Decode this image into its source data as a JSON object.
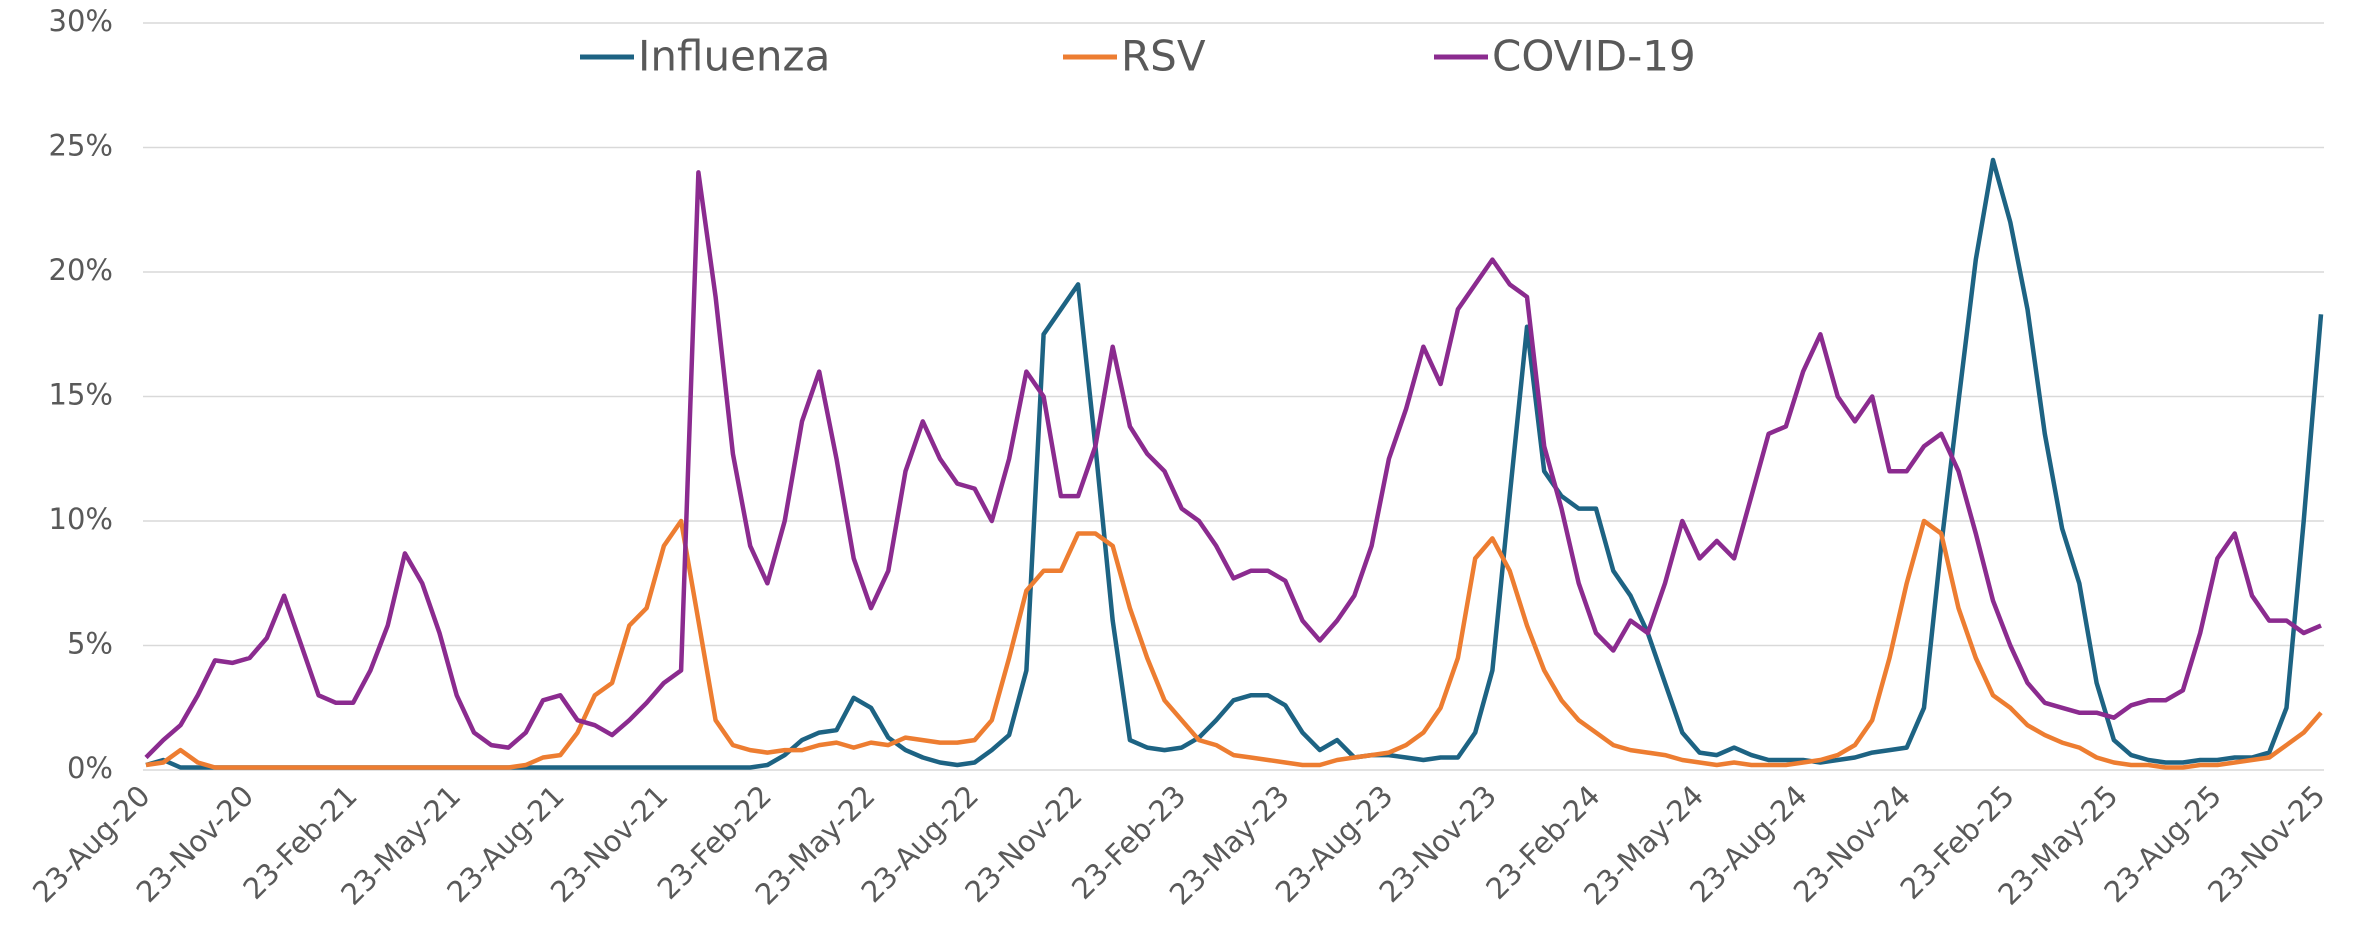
{
  "chart_data": {
    "type": "line",
    "categories": [
      "23-Aug-20",
      null,
      null,
      null,
      null,
      null,
      "23-Nov-20",
      null,
      null,
      null,
      null,
      null,
      "23-Feb-21",
      null,
      null,
      null,
      null,
      null,
      "23-May-21",
      null,
      null,
      null,
      null,
      null,
      "23-Aug-21",
      null,
      null,
      null,
      null,
      null,
      "23-Nov-21",
      null,
      null,
      null,
      null,
      null,
      "23-Feb-22",
      null,
      null,
      null,
      null,
      null,
      "23-May-22",
      null,
      null,
      null,
      null,
      null,
      "23-Aug-22",
      null,
      null,
      null,
      null,
      null,
      "23-Nov-22",
      null,
      null,
      null,
      null,
      null,
      "23-Feb-23",
      null,
      null,
      null,
      null,
      null,
      "23-May-23",
      null,
      null,
      null,
      null,
      null,
      "23-Aug-23",
      null,
      null,
      null,
      null,
      null,
      "23-Nov-23",
      null,
      null,
      null,
      null,
      null,
      "23-Feb-24",
      null,
      null,
      null,
      null,
      null,
      "23-May-24",
      null,
      null,
      null,
      null,
      null,
      "23-Aug-24",
      null,
      null,
      null,
      null,
      null,
      "23-Nov-24",
      null,
      null,
      null,
      null,
      null,
      "23-Feb-25",
      null,
      null,
      null,
      null,
      null,
      "23-May-25",
      null,
      null,
      null,
      null,
      null,
      "23-Aug-25",
      null,
      null,
      null,
      null,
      null,
      "23-Nov-25"
    ],
    "series": [
      {
        "name": "Influenza",
        "color": "#1d6383",
        "values": [
          0.2,
          0.4,
          0.1,
          0.1,
          0.1,
          0.1,
          0.1,
          0.1,
          0.1,
          0.1,
          0.1,
          0.1,
          0.1,
          0.1,
          0.1,
          0.1,
          0.1,
          0.1,
          0.1,
          0.1,
          0.1,
          0.1,
          0.1,
          0.1,
          0.1,
          0.1,
          0.1,
          0.1,
          0.1,
          0.1,
          0.1,
          0.1,
          0.1,
          0.1,
          0.1,
          0.1,
          0.2,
          0.6,
          1.2,
          1.5,
          1.6,
          2.9,
          2.5,
          1.3,
          0.8,
          0.5,
          0.3,
          0.2,
          0.3,
          0.8,
          1.4,
          4,
          17.5,
          18.5,
          19.5,
          13,
          6,
          1.2,
          0.9,
          0.8,
          0.9,
          1.3,
          2,
          2.8,
          3,
          3,
          2.6,
          1.5,
          0.8,
          1.2,
          0.5,
          0.6,
          0.6,
          0.5,
          0.4,
          0.5,
          0.5,
          1.5,
          4,
          11,
          17.8,
          12,
          11,
          10.5,
          10.5,
          8,
          7,
          5.5,
          3.5,
          1.5,
          0.7,
          0.6,
          0.9,
          0.6,
          0.4,
          0.4,
          0.4,
          0.3,
          0.4,
          0.5,
          0.7,
          0.8,
          0.9,
          2.5,
          9,
          14.8,
          20.5,
          24.5,
          22,
          18.5,
          13.5,
          9.7,
          7.5,
          3.5,
          1.2,
          0.6,
          0.4,
          0.3,
          0.3,
          0.4,
          0.4,
          0.5,
          0.5,
          0.7,
          2.5,
          10,
          18.3
        ]
      },
      {
        "name": "RSV",
        "color": "#ed7d31",
        "values": [
          0.2,
          0.3,
          0.8,
          0.3,
          0.1,
          0.1,
          0.1,
          0.1,
          0.1,
          0.1,
          0.1,
          0.1,
          0.1,
          0.1,
          0.1,
          0.1,
          0.1,
          0.1,
          0.1,
          0.1,
          0.1,
          0.1,
          0.2,
          0.5,
          0.6,
          1.5,
          3,
          3.5,
          5.8,
          6.5,
          9,
          10,
          6,
          2,
          1,
          0.8,
          0.7,
          0.8,
          0.8,
          1,
          1.1,
          0.9,
          1.1,
          1,
          1.3,
          1.2,
          1.1,
          1.1,
          1.2,
          2,
          4.5,
          7.2,
          8,
          8,
          9.5,
          9.5,
          9,
          6.5,
          4.5,
          2.8,
          2,
          1.2,
          1,
          0.6,
          0.5,
          0.4,
          0.3,
          0.2,
          0.2,
          0.4,
          0.5,
          0.6,
          0.7,
          1,
          1.5,
          2.5,
          4.5,
          8.5,
          9.3,
          8,
          5.8,
          4,
          2.8,
          2,
          1.5,
          1,
          0.8,
          0.7,
          0.6,
          0.4,
          0.3,
          0.2,
          0.3,
          0.2,
          0.2,
          0.2,
          0.3,
          0.4,
          0.6,
          1,
          2,
          4.5,
          7.5,
          10,
          9.5,
          6.5,
          4.5,
          3,
          2.5,
          1.8,
          1.4,
          1.1,
          0.9,
          0.5,
          0.3,
          0.2,
          0.2,
          0.1,
          0.1,
          0.2,
          0.2,
          0.3,
          0.4,
          0.5,
          1,
          1.5,
          2.3
        ]
      },
      {
        "name": "COVID-19",
        "color": "#8b2b8f",
        "values": [
          0.5,
          1.2,
          1.8,
          3,
          4.4,
          4.3,
          4.5,
          5.3,
          7,
          5,
          3,
          2.7,
          2.7,
          4,
          5.8,
          8.7,
          7.5,
          5.5,
          3,
          1.5,
          1,
          0.9,
          1.5,
          2.8,
          3,
          2,
          1.8,
          1.4,
          2,
          2.7,
          3.5,
          4,
          24,
          19,
          12.7,
          9,
          7.5,
          10,
          14,
          16,
          12.5,
          8.5,
          6.5,
          8,
          12,
          14,
          12.5,
          11.5,
          11.3,
          10,
          12.5,
          16,
          15,
          11,
          11,
          13,
          17,
          13.8,
          12.7,
          12,
          10.5,
          10,
          9,
          7.7,
          8,
          8,
          7.6,
          6,
          5.2,
          6,
          7,
          9,
          12.5,
          14.5,
          17,
          15.5,
          18.5,
          19.5,
          20.5,
          19.5,
          19,
          13,
          10.5,
          7.5,
          5.5,
          4.8,
          6,
          5.5,
          7.5,
          10,
          8.5,
          9.2,
          8.5,
          11,
          13.5,
          13.8,
          16,
          17.5,
          15,
          14,
          15,
          12,
          12,
          13,
          13.5,
          12,
          9.5,
          6.8,
          5,
          3.5,
          2.7,
          2.5,
          2.3,
          2.3,
          2.1,
          2.6,
          2.8,
          2.8,
          3.2,
          5.5,
          8.5,
          9.5,
          7,
          6,
          6,
          5.5,
          5.8
        ]
      }
    ],
    "ylim": [
      0,
      30
    ],
    "yticks": [
      {
        "value": 0,
        "label": "0%"
      },
      {
        "value": 5,
        "label": "5%"
      },
      {
        "value": 10,
        "label": "10%"
      },
      {
        "value": 15,
        "label": "15%"
      },
      {
        "value": 20,
        "label": "20%"
      },
      {
        "value": 25,
        "label": "25%"
      },
      {
        "value": 30,
        "label": "30%"
      }
    ],
    "grid": true,
    "legend": "top"
  }
}
